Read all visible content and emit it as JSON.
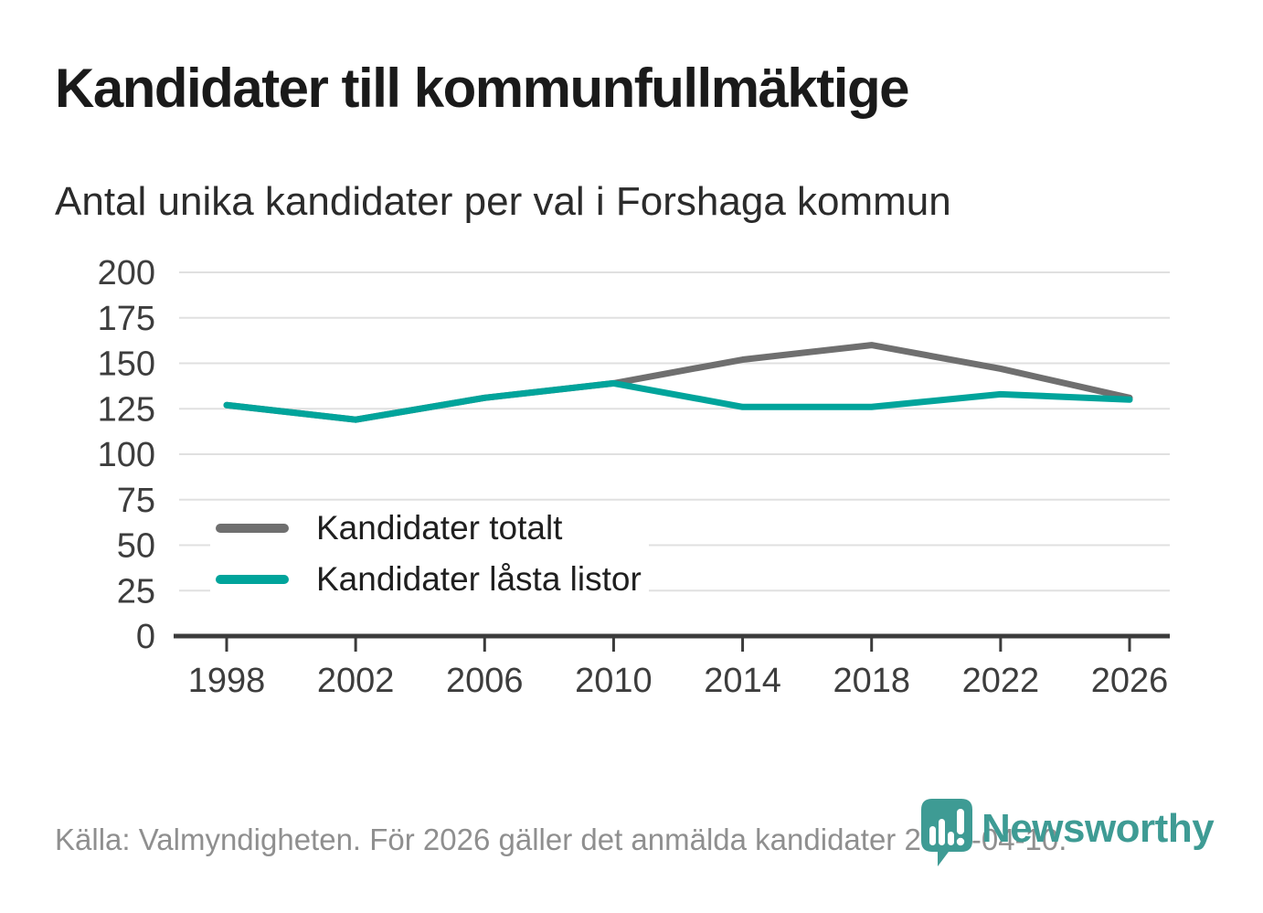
{
  "header": {
    "title": "Kandidater till kommunfullmäktige",
    "subtitle": "Antal unika kandidater per val i Forshaga kommun"
  },
  "chart_data": {
    "type": "line",
    "categories": [
      "1998",
      "2002",
      "2006",
      "2010",
      "2014",
      "2018",
      "2022",
      "2026"
    ],
    "series": [
      {
        "name": "Kandidater totalt",
        "color": "#6f6f6f",
        "values": [
          127,
          119,
          131,
          139,
          152,
          160,
          147,
          131
        ]
      },
      {
        "name": "Kandidater låsta listor",
        "color": "#00a49b",
        "values": [
          127,
          119,
          131,
          139,
          126,
          126,
          133,
          130
        ]
      }
    ],
    "title": "Kandidater till kommunfullmäktige",
    "subtitle": "Antal unika kandidater per val i Forshaga kommun",
    "xlabel": "",
    "ylabel": "",
    "ylim": [
      0,
      200
    ],
    "yticks": [
      0,
      25,
      50,
      75,
      100,
      125,
      150,
      175,
      200
    ],
    "grid": true,
    "legend_position": "inside-lower-left",
    "gridline_color": "#e0e0e0",
    "axis_color": "#3b3b3b",
    "tick_label_color": "#3d3d3d"
  },
  "footer": {
    "source_text": "Källa: Valmyndigheten. För 2026 gäller det anmälda kandidater 2026-04-10."
  },
  "branding": {
    "logo_text": "Newsworthy",
    "brand_color": "#3e9b94",
    "logo_icon": "newsworthy-chart-bubble-icon"
  }
}
